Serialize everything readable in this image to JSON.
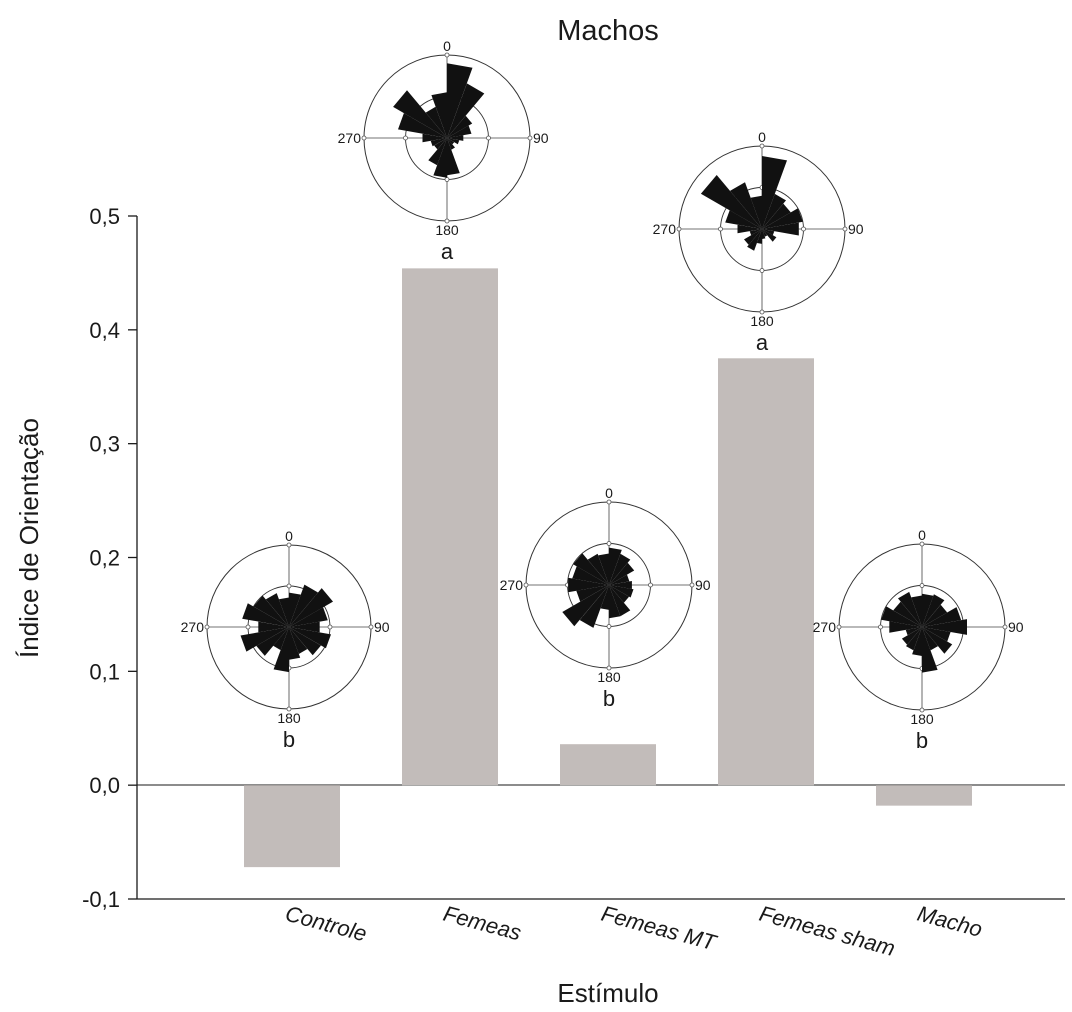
{
  "chart_data": {
    "type": "bar",
    "title": "Machos",
    "xlabel": "Estímulo",
    "ylabel": "Índice de Orientação",
    "categories": [
      "Controle",
      "Femeas",
      "Femeas MT",
      "Femeas sham",
      "Macho"
    ],
    "values": [
      -0.072,
      0.454,
      0.036,
      0.375,
      -0.018
    ],
    "ylim": [
      -0.1,
      0.5
    ],
    "yticks": [
      "-0,1",
      "0,0",
      "0,1",
      "0,2",
      "0,3",
      "0,4",
      "0,5"
    ],
    "grid": false,
    "significance_letters": [
      "b",
      "a",
      "b",
      "a",
      "b"
    ],
    "rose_axis_labels": [
      "0",
      "90",
      "180",
      "270"
    ],
    "bar_color": "#c2bcba",
    "rose_color": "#111111",
    "rose_plots": [
      {
        "category": "Controle",
        "sectors": [
          0.42,
          0.55,
          0.62,
          0.48,
          0.38,
          0.52,
          0.45,
          0.35,
          0.4,
          0.55,
          0.3,
          0.46,
          0.6,
          0.38,
          0.58,
          0.5,
          0.44,
          0.36
        ]
      },
      {
        "category": "Femeas",
        "sectors": [
          0.9,
          0.7,
          0.35,
          0.3,
          0.2,
          0.15,
          0.1,
          0.15,
          0.45,
          0.48,
          0.35,
          0.18,
          0.2,
          0.3,
          0.6,
          0.75,
          0.4,
          0.55
        ]
      },
      {
        "category": "Femeas MT",
        "sectors": [
          0.45,
          0.4,
          0.35,
          0.25,
          0.28,
          0.3,
          0.28,
          0.4,
          0.4,
          0.3,
          0.55,
          0.65,
          0.4,
          0.5,
          0.45,
          0.5,
          0.4,
          0.38
        ]
      },
      {
        "category": "Femeas sham",
        "sectors": [
          0.88,
          0.45,
          0.4,
          0.5,
          0.45,
          0.15,
          0.2,
          0.1,
          0.12,
          0.18,
          0.28,
          0.25,
          0.15,
          0.3,
          0.45,
          0.85,
          0.6,
          0.4
        ]
      },
      {
        "category": "Macho",
        "sectors": [
          0.4,
          0.42,
          0.35,
          0.48,
          0.55,
          0.35,
          0.42,
          0.3,
          0.55,
          0.35,
          0.3,
          0.28,
          0.2,
          0.4,
          0.5,
          0.4,
          0.45,
          0.38
        ]
      }
    ]
  }
}
